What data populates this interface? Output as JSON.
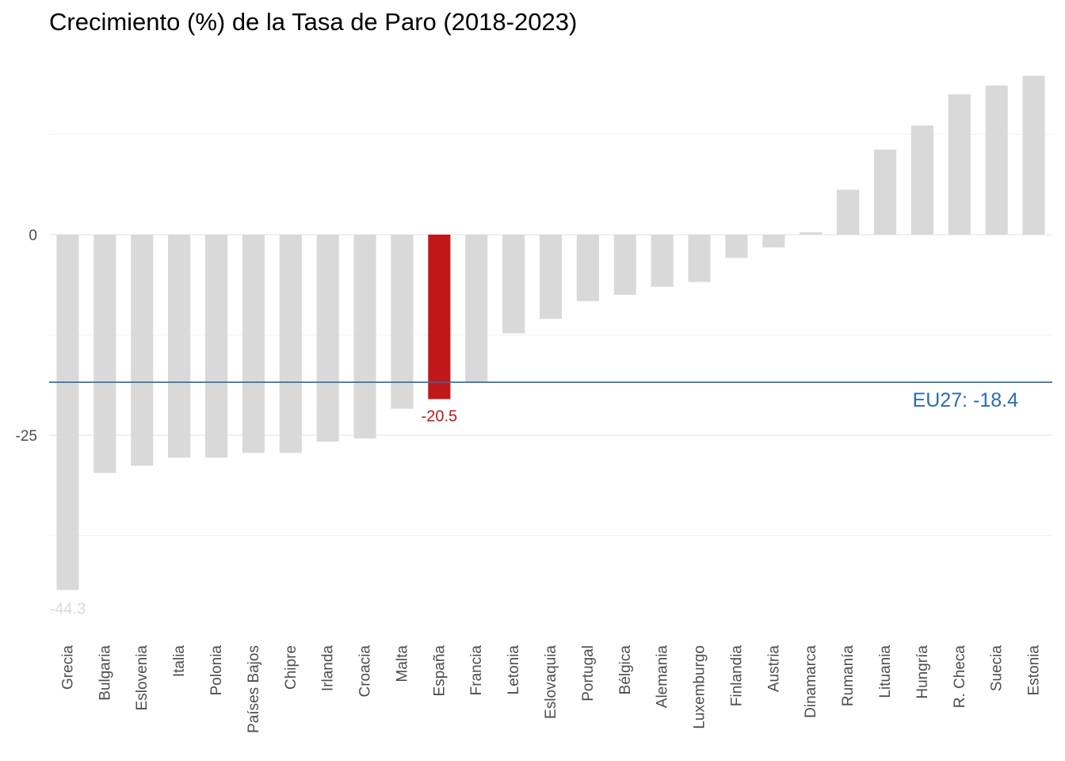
{
  "chart_data": {
    "type": "bar",
    "title": "Crecimiento (%) de la Tasa de Paro (2018-2023)",
    "xlabel": "",
    "ylabel": "",
    "ylim": [
      -48.5,
      21.5
    ],
    "yticks": [
      0,
      -25
    ],
    "ytick_labels": [
      "0",
      "-25"
    ],
    "grid": true,
    "categories": [
      "Grecia",
      "Bulgaria",
      "Eslovenia",
      "Italia",
      "Polonia",
      "Países Bajos",
      "Chipre",
      "Irlanda",
      "Croacia",
      "Malta",
      "España",
      "Francia",
      "Letonia",
      "Eslovaquia",
      "Portugal",
      "Bélgica",
      "Alemania",
      "Luxemburgo",
      "Finlandia",
      "Austria",
      "Dinamarca",
      "Rumanía",
      "Lituania",
      "Hungría",
      "R. Checa",
      "Suecia",
      "Estonia"
    ],
    "values": [
      -44.3,
      -29.7,
      -28.8,
      -27.8,
      -27.8,
      -27.2,
      -27.2,
      -25.8,
      -25.4,
      -21.7,
      -20.5,
      -18.5,
      -12.3,
      -10.5,
      -8.3,
      -7.5,
      -6.5,
      -5.9,
      -2.9,
      -1.6,
      0.3,
      5.6,
      10.6,
      13.6,
      17.5,
      18.6,
      19.8
    ],
    "highlight": {
      "category": "España",
      "value": -20.5,
      "label": "-20.5",
      "color": "#c0181a"
    },
    "min_label": {
      "category": "Grecia",
      "label": "-44.3",
      "color": "#d9d9d9"
    },
    "bar_color": "#d9d9d9",
    "reference_line": {
      "name": "EU27",
      "value": -18.4,
      "label": "EU27: -18.4",
      "color": "#2b6cad"
    }
  }
}
